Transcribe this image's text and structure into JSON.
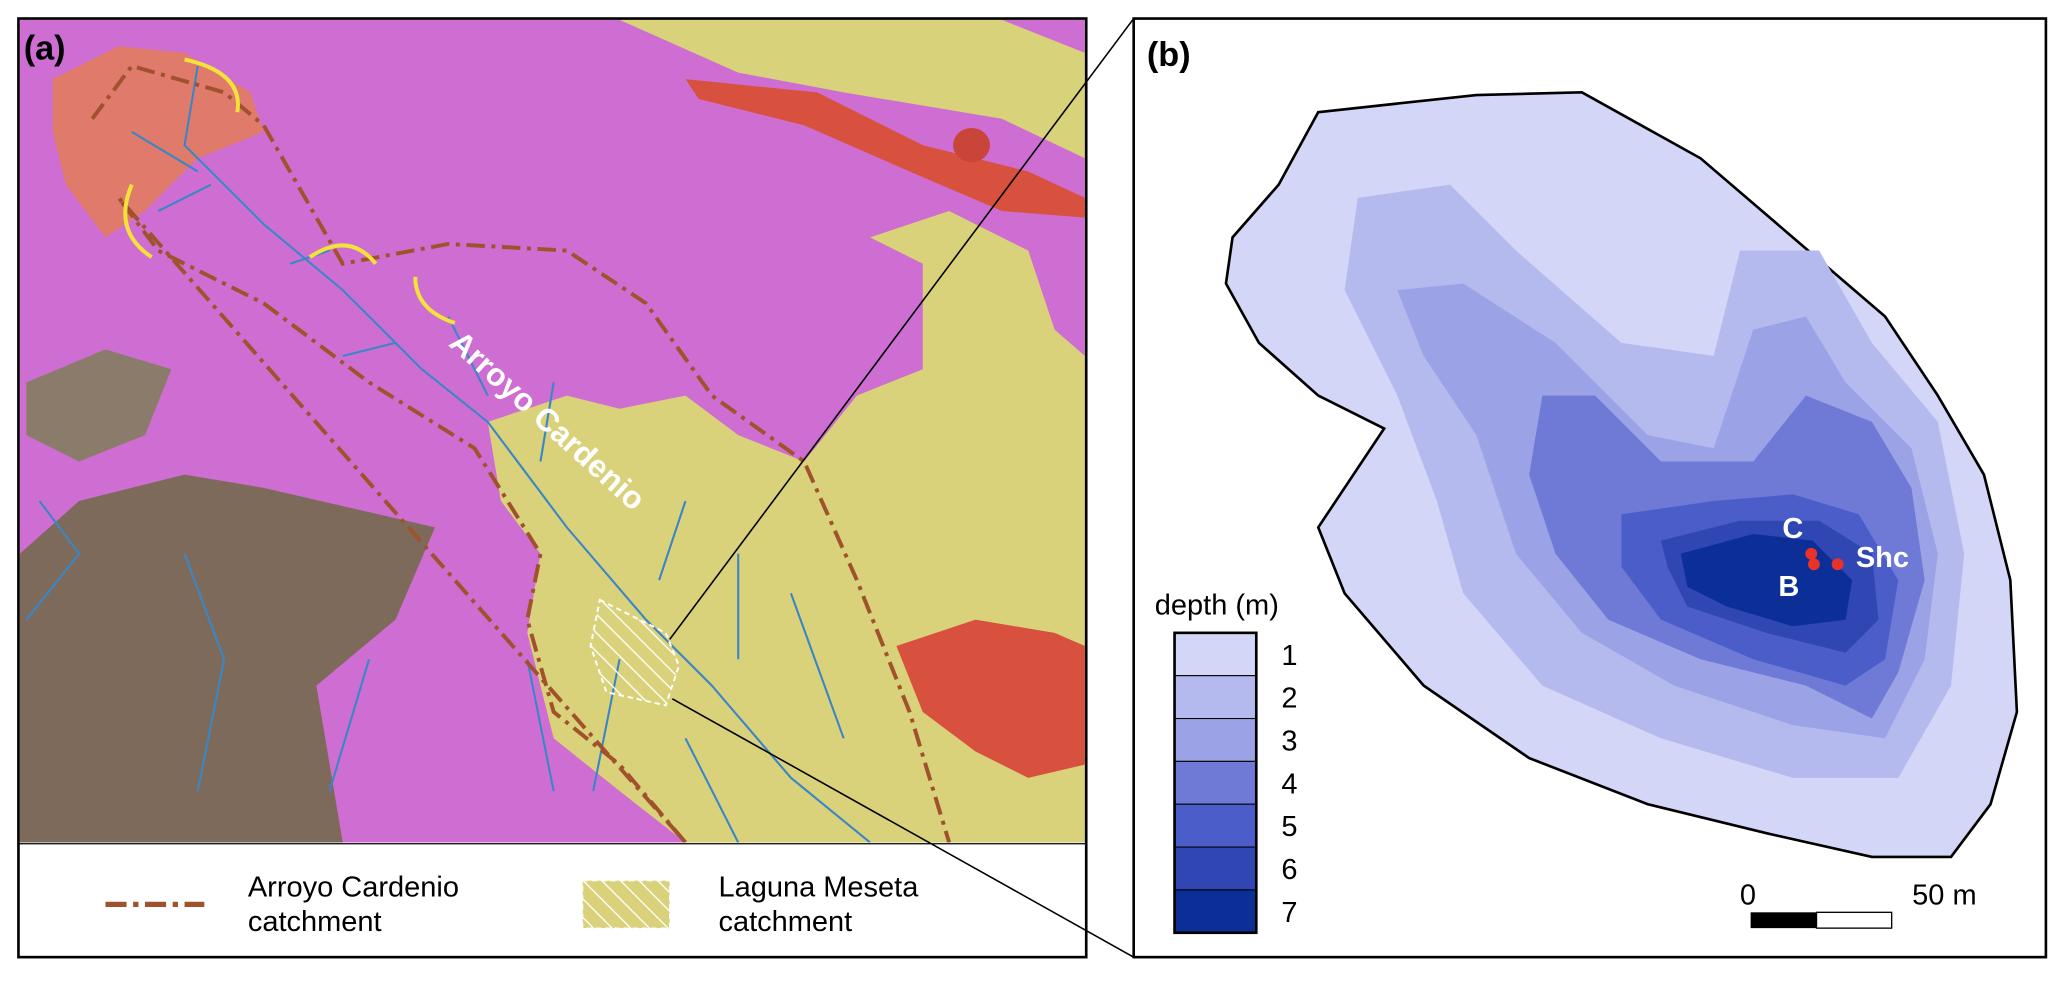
{
  "panel_a": {
    "label": "(a)",
    "map_label": "Arroyo Cardenio",
    "legend": [
      {
        "lines": [
          "Arroyo Cardenio",
          "catchment"
        ]
      },
      {
        "lines": [
          "Laguna Meseta",
          "catchment"
        ]
      }
    ]
  },
  "panel_b": {
    "label": "(b)",
    "legend_title": "depth (m)",
    "depth_classes": [
      1,
      2,
      3,
      4,
      5,
      6,
      7
    ],
    "colors": [
      "#d3d6f6",
      "#b5baee",
      "#9ba2e5",
      "#6e7ad6",
      "#4b5dc8",
      "#2f46b3",
      "#0b2f96"
    ],
    "samples": [
      "C",
      "B",
      "Shc"
    ],
    "scale_bar": [
      "0",
      "50 m"
    ]
  }
}
